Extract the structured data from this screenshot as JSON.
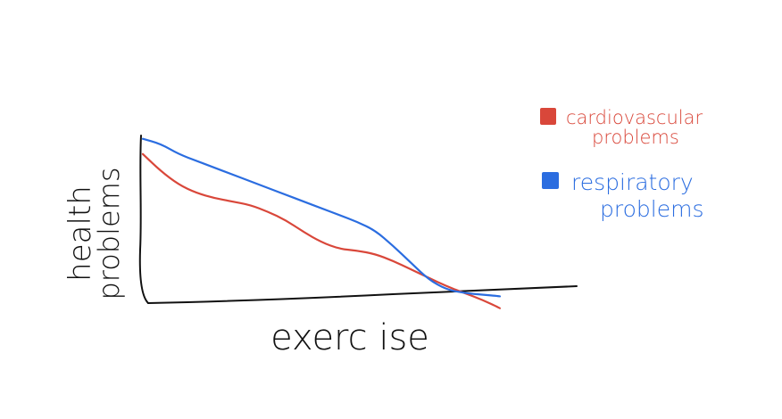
{
  "chart_data": {
    "type": "line",
    "title": "",
    "xlabel": "exerc ise",
    "ylabel_lines": [
      "health",
      "problems"
    ],
    "x": [
      0,
      1,
      2,
      3,
      4,
      5,
      6,
      7,
      8,
      9,
      10,
      11,
      12,
      13,
      14,
      15,
      16,
      17,
      18,
      19,
      20
    ],
    "xlim": [
      0,
      25
    ],
    "ylim": [
      0,
      10
    ],
    "grid": false,
    "legend_position": "top-right",
    "series": [
      {
        "name_lines": [
          "cardiovascular",
          "problems"
        ],
        "color": "#d9473a",
        "values": [
          8.8,
          7.8,
          7.0,
          6.5,
          6.2,
          6.0,
          5.8,
          5.4,
          4.9,
          4.2,
          3.6,
          3.2,
          3.1,
          2.9,
          2.5,
          2.0,
          1.5,
          1.0,
          0.6,
          0.2,
          -0.3
        ]
      },
      {
        "name_lines": [
          "respiratory",
          "problems"
        ],
        "color": "#2b6de0",
        "values": [
          9.7,
          9.4,
          8.8,
          8.4,
          8.0,
          7.6,
          7.2,
          6.8,
          6.4,
          6.0,
          5.6,
          5.2,
          4.8,
          4.3,
          3.4,
          2.4,
          1.4,
          0.8,
          0.6,
          0.5,
          0.4
        ]
      }
    ]
  }
}
